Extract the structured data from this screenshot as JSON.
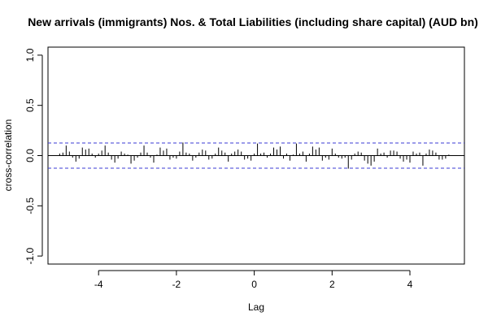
{
  "chart_data": {
    "type": "bar",
    "title": "New arrivals (immigrants) Nos. & Total Liabilities (including share capital) (AUD bn)",
    "xlabel": "Lag",
    "ylabel": "cross-correlation",
    "xlim": [
      -5.3,
      5.4
    ],
    "ylim": [
      -1.08,
      1.08
    ],
    "x_ticks": [
      -4,
      -2,
      0,
      2,
      4
    ],
    "y_ticks": [
      -1.0,
      -0.5,
      0.0,
      0.5,
      1.0
    ],
    "confidence_bound": 0.125,
    "colors": {
      "bars": "#000000",
      "confidence": "#3b3bd6",
      "zero_line": "#000000"
    },
    "lags": [
      -5.0,
      -4.917,
      -4.833,
      -4.75,
      -4.667,
      -4.583,
      -4.5,
      -4.417,
      -4.333,
      -4.25,
      -4.167,
      -4.083,
      -4.0,
      -3.917,
      -3.833,
      -3.75,
      -3.667,
      -3.583,
      -3.5,
      -3.417,
      -3.333,
      -3.25,
      -3.167,
      -3.083,
      -3.0,
      -2.917,
      -2.833,
      -2.75,
      -2.667,
      -2.583,
      -2.5,
      -2.417,
      -2.333,
      -2.25,
      -2.167,
      -2.083,
      -2.0,
      -1.917,
      -1.833,
      -1.75,
      -1.667,
      -1.583,
      -1.5,
      -1.417,
      -1.333,
      -1.25,
      -1.167,
      -1.083,
      -1.0,
      -0.917,
      -0.833,
      -0.75,
      -0.667,
      -0.583,
      -0.5,
      -0.417,
      -0.333,
      -0.25,
      -0.167,
      -0.083,
      0.0,
      0.083,
      0.167,
      0.25,
      0.333,
      0.417,
      0.5,
      0.583,
      0.667,
      0.75,
      0.833,
      0.917,
      1.0,
      1.083,
      1.167,
      1.25,
      1.333,
      1.417,
      1.5,
      1.583,
      1.667,
      1.75,
      1.833,
      1.917,
      2.0,
      2.083,
      2.167,
      2.25,
      2.333,
      2.417,
      2.5,
      2.583,
      2.667,
      2.75,
      2.833,
      2.917,
      3.0,
      3.083,
      3.167,
      3.25,
      3.333,
      3.417,
      3.5,
      3.583,
      3.667,
      3.75,
      3.833,
      3.917,
      4.0,
      4.083,
      4.167,
      4.25,
      4.333,
      4.417,
      4.5,
      4.583,
      4.667,
      4.75,
      4.833,
      4.917,
      5.0
    ],
    "values": [
      0.02,
      0.03,
      0.1,
      0.04,
      -0.02,
      -0.06,
      -0.03,
      0.08,
      0.06,
      0.07,
      0.02,
      -0.02,
      0.02,
      0.05,
      0.1,
      0.03,
      -0.04,
      -0.07,
      -0.03,
      0.04,
      0.02,
      0.01,
      -0.08,
      -0.05,
      -0.02,
      0.03,
      0.1,
      0.03,
      -0.02,
      -0.07,
      0.01,
      0.08,
      0.05,
      0.07,
      -0.04,
      -0.02,
      -0.03,
      0.04,
      0.13,
      0.03,
      0.02,
      -0.05,
      -0.02,
      0.03,
      0.06,
      0.05,
      -0.04,
      -0.03,
      0.02,
      0.08,
      0.05,
      0.03,
      -0.06,
      0.02,
      0.04,
      0.06,
      0.04,
      -0.04,
      -0.03,
      -0.05,
      0.02,
      0.12,
      0.02,
      0.03,
      -0.02,
      0.02,
      0.08,
      0.06,
      0.09,
      -0.03,
      0.02,
      -0.05,
      0.01,
      0.12,
      0.02,
      0.04,
      -0.06,
      0.02,
      0.09,
      0.06,
      0.08,
      -0.05,
      -0.02,
      -0.04,
      0.07,
      0.02,
      -0.02,
      -0.03,
      -0.02,
      -0.13,
      -0.04,
      0.02,
      0.04,
      0.03,
      -0.05,
      -0.08,
      -0.1,
      -0.06,
      0.07,
      0.02,
      0.03,
      -0.02,
      0.05,
      0.05,
      0.04,
      -0.03,
      -0.06,
      -0.04,
      -0.07,
      0.04,
      0.02,
      0.03,
      -0.1,
      0.02,
      0.06,
      0.05,
      0.03,
      -0.04,
      -0.04,
      -0.03,
      0.01
    ]
  }
}
